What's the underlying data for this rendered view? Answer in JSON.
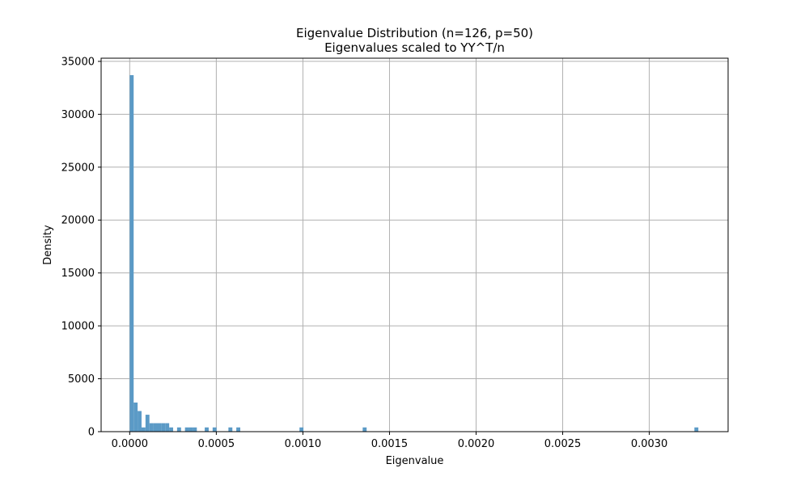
{
  "chart_data": {
    "type": "bar",
    "title": "Eigenvalue Distribution (n=126, p=50)",
    "subtitle": "Eigenvalues scaled to YY^T/n",
    "xlabel": "Eigenvalue",
    "ylabel": "Density",
    "xlim": [
      -0.000165,
      0.003455
    ],
    "ylim": [
      0,
      35300
    ],
    "grid": true,
    "bar_color": "#5b9ac6",
    "bin_width": 2.28e-05,
    "x_ticks": [
      0.0,
      0.0005,
      0.001,
      0.0015,
      0.002,
      0.0025,
      0.003
    ],
    "x_tick_labels": [
      "0.0000",
      "0.0005",
      "0.0010",
      "0.0015",
      "0.0020",
      "0.0025",
      "0.0030"
    ],
    "y_ticks": [
      0,
      5000,
      10000,
      15000,
      20000,
      25000,
      30000,
      35000
    ],
    "y_tick_labels": [
      "0",
      "5000",
      "10000",
      "15000",
      "20000",
      "25000",
      "30000",
      "35000"
    ],
    "bins": [
      {
        "x": 0.0,
        "value": 33700
      },
      {
        "x": 2.28e-05,
        "value": 2750
      },
      {
        "x": 4.56e-05,
        "value": 1950
      },
      {
        "x": 6.84e-05,
        "value": 400
      },
      {
        "x": 9.12e-05,
        "value": 1600
      },
      {
        "x": 0.000114,
        "value": 800
      },
      {
        "x": 0.0001368,
        "value": 800
      },
      {
        "x": 0.0001596,
        "value": 800
      },
      {
        "x": 0.0001824,
        "value": 800
      },
      {
        "x": 0.0002052,
        "value": 800
      },
      {
        "x": 0.000228,
        "value": 400
      },
      {
        "x": 0.0002736,
        "value": 400
      },
      {
        "x": 0.0003192,
        "value": 400
      },
      {
        "x": 0.000342,
        "value": 400
      },
      {
        "x": 0.0003648,
        "value": 400
      },
      {
        "x": 0.0004332,
        "value": 400
      },
      {
        "x": 0.0004788,
        "value": 400
      },
      {
        "x": 0.00057,
        "value": 400
      },
      {
        "x": 0.0006156,
        "value": 400
      },
      {
        "x": 0.0009804,
        "value": 400
      },
      {
        "x": 0.0013452,
        "value": 400
      },
      {
        "x": 0.0032604,
        "value": 400
      }
    ]
  }
}
